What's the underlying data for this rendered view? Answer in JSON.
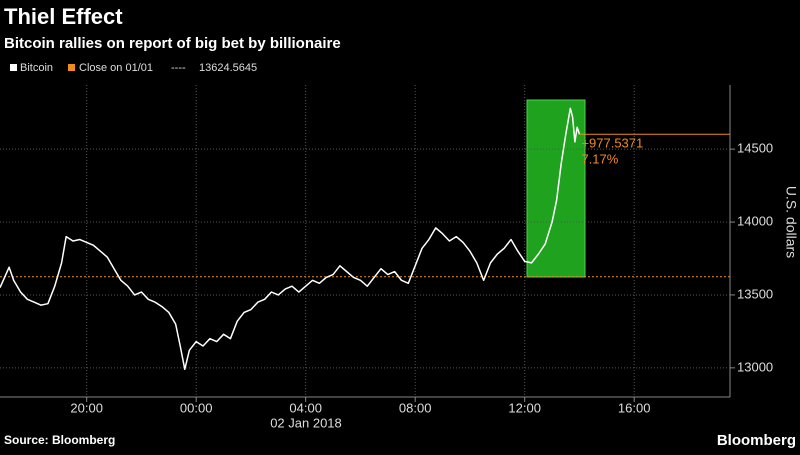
{
  "chart_data": {
    "type": "line",
    "title": "Thiel Effect",
    "subtitle": "Bitcoin rallies on report of big bet by billionaire",
    "y_label": "U.S. dollars",
    "x_label": "02 Jan 2018",
    "source": "Source: Bloomberg",
    "brand": "Bloomberg",
    "reference": {
      "name": "Close on 01/01",
      "value": 13624.5645,
      "color": "#f08c1c"
    },
    "annotations": [
      "+977.5371",
      "7.17%"
    ],
    "x": [
      "2018-01-01T16:50",
      "2018-01-01T17:00",
      "2018-01-01T17:10",
      "2018-01-01T17:20",
      "2018-01-01T17:35",
      "2018-01-01T17:50",
      "2018-01-01T18:05",
      "2018-01-01T18:20",
      "2018-01-01T18:35",
      "2018-01-01T18:50",
      "2018-01-01T19:05",
      "2018-01-01T19:15",
      "2018-01-01T19:30",
      "2018-01-01T19:45",
      "2018-01-01T20:00",
      "2018-01-01T20:15",
      "2018-01-01T20:30",
      "2018-01-01T20:45",
      "2018-01-01T21:00",
      "2018-01-01T21:15",
      "2018-01-01T21:30",
      "2018-01-01T21:45",
      "2018-01-01T22:00",
      "2018-01-01T22:15",
      "2018-01-01T22:30",
      "2018-01-01T22:45",
      "2018-01-01T23:00",
      "2018-01-01T23:15",
      "2018-01-01T23:25",
      "2018-01-01T23:35",
      "2018-01-01T23:45",
      "2018-01-02T00:00",
      "2018-01-02T00:15",
      "2018-01-02T00:30",
      "2018-01-02T00:45",
      "2018-01-02T01:00",
      "2018-01-02T01:15",
      "2018-01-02T01:30",
      "2018-01-02T01:45",
      "2018-01-02T02:00",
      "2018-01-02T02:15",
      "2018-01-02T02:30",
      "2018-01-02T02:45",
      "2018-01-02T03:00",
      "2018-01-02T03:15",
      "2018-01-02T03:30",
      "2018-01-02T03:45",
      "2018-01-02T04:00",
      "2018-01-02T04:15",
      "2018-01-02T04:30",
      "2018-01-02T04:45",
      "2018-01-02T05:00",
      "2018-01-02T05:15",
      "2018-01-02T05:30",
      "2018-01-02T05:45",
      "2018-01-02T06:00",
      "2018-01-02T06:15",
      "2018-01-02T06:30",
      "2018-01-02T06:45",
      "2018-01-02T07:00",
      "2018-01-02T07:15",
      "2018-01-02T07:30",
      "2018-01-02T07:45",
      "2018-01-02T08:00",
      "2018-01-02T08:15",
      "2018-01-02T08:30",
      "2018-01-02T08:45",
      "2018-01-02T09:00",
      "2018-01-02T09:15",
      "2018-01-02T09:30",
      "2018-01-02T09:45",
      "2018-01-02T10:00",
      "2018-01-02T10:15",
      "2018-01-02T10:30",
      "2018-01-02T10:45",
      "2018-01-02T11:00",
      "2018-01-02T11:15",
      "2018-01-02T11:30",
      "2018-01-02T11:45",
      "2018-01-02T12:00",
      "2018-01-02T12:15",
      "2018-01-02T12:30",
      "2018-01-02T12:45",
      "2018-01-02T13:00",
      "2018-01-02T13:10",
      "2018-01-02T13:20",
      "2018-01-02T13:30",
      "2018-01-02T13:40",
      "2018-01-02T13:45",
      "2018-01-02T13:50",
      "2018-01-02T13:55",
      "2018-01-02T14:00"
    ],
    "series": [
      {
        "name": "Bitcoin",
        "color": "#ffffff",
        "values": [
          13550,
          13620,
          13690,
          13600,
          13520,
          13470,
          13450,
          13430,
          13440,
          13560,
          13720,
          13900,
          13870,
          13880,
          13860,
          13840,
          13800,
          13760,
          13680,
          13600,
          13560,
          13500,
          13520,
          13470,
          13450,
          13420,
          13380,
          13300,
          13150,
          12990,
          13120,
          13180,
          13150,
          13200,
          13180,
          13230,
          13200,
          13320,
          13380,
          13400,
          13450,
          13470,
          13520,
          13500,
          13540,
          13560,
          13520,
          13560,
          13600,
          13580,
          13620,
          13640,
          13700,
          13660,
          13620,
          13600,
          13560,
          13620,
          13680,
          13640,
          13660,
          13600,
          13580,
          13700,
          13820,
          13880,
          13960,
          13920,
          13870,
          13900,
          13860,
          13800,
          13720,
          13600,
          13720,
          13780,
          13820,
          13880,
          13800,
          13730,
          13720,
          13780,
          13850,
          14000,
          14150,
          14400,
          14600,
          14780,
          14720,
          14550,
          14650,
          14602.1016
        ]
      }
    ],
    "xlim": [
      "2018-01-01T16:50",
      "2018-01-02T19:30"
    ],
    "xticks": [
      {
        "value": "2018-01-01T20:00",
        "label": "20:00"
      },
      {
        "value": "2018-01-02T00:00",
        "label": "00:00"
      },
      {
        "value": "2018-01-02T04:00",
        "label": "04:00"
      },
      {
        "value": "2018-01-02T08:00",
        "label": "08:00"
      },
      {
        "value": "2018-01-02T12:00",
        "label": "12:00"
      },
      {
        "value": "2018-01-02T16:00",
        "label": "16:00"
      }
    ],
    "ylim": [
      12800,
      14940
    ],
    "yticks": [
      13000,
      13500,
      14000,
      14500
    ]
  }
}
